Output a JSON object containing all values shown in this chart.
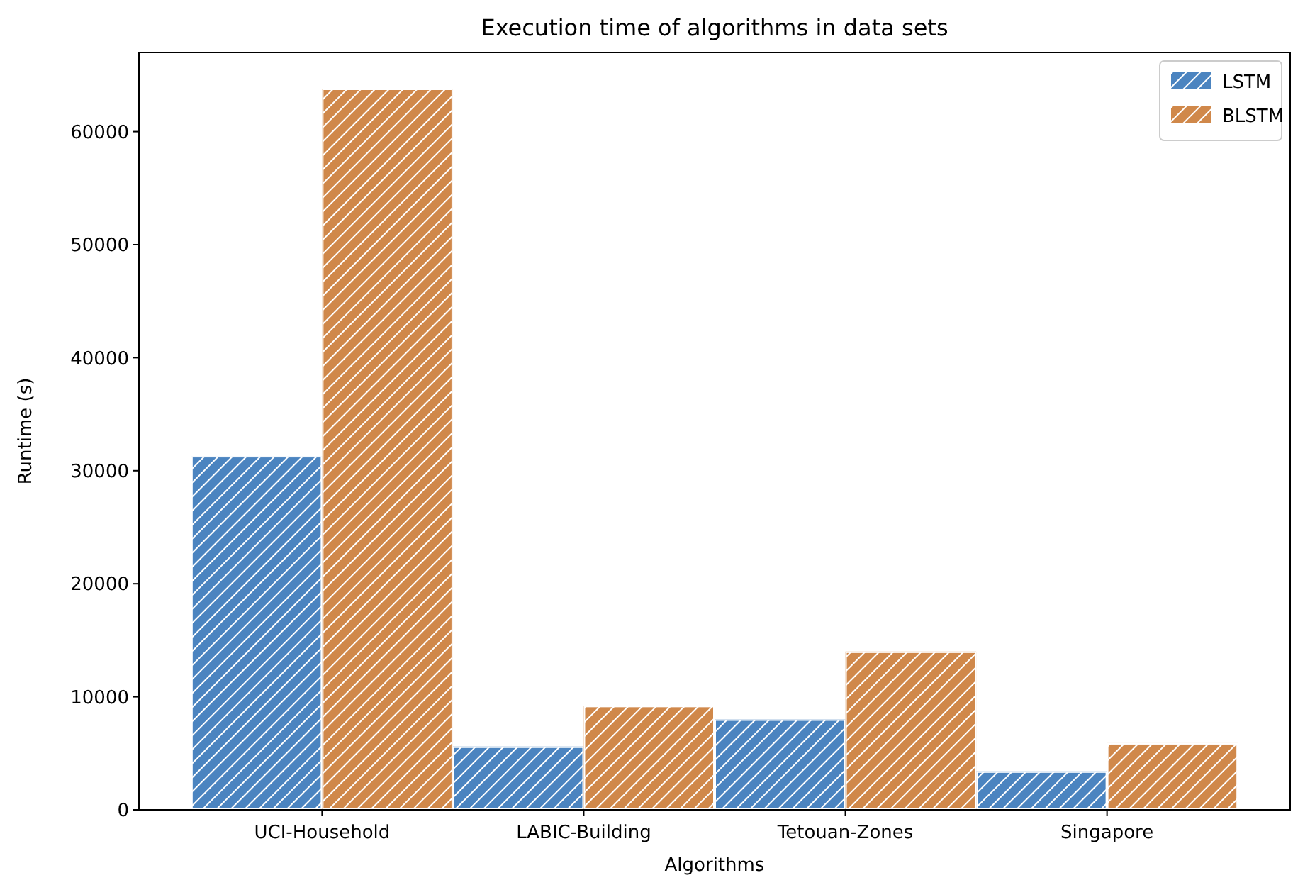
{
  "chart_data": {
    "type": "bar",
    "title": "Execution time of algorithms in data sets",
    "xlabel": "Algorithms",
    "ylabel": "Runtime (s)",
    "categories": [
      "UCI-Household",
      "LABIC-Building",
      "Tetouan-Zones",
      "Singapore"
    ],
    "series": [
      {
        "name": "LSTM",
        "color": "#4b84c0",
        "values": [
          31300,
          5600,
          8000,
          3400
        ]
      },
      {
        "name": "BLSTM",
        "color": "#d0884a",
        "values": [
          63800,
          9200,
          14000,
          5900
        ]
      }
    ],
    "ylim": [
      0,
      67000
    ],
    "yticks": [
      0,
      10000,
      20000,
      30000,
      40000,
      50000,
      60000
    ],
    "legend": "top right"
  }
}
